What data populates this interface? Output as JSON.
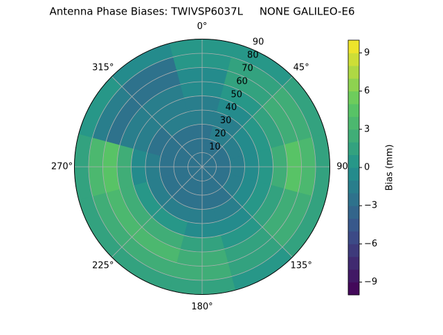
{
  "chart_data": {
    "type": "polar_contour",
    "title": "Antenna Phase Biases: TWIVSP6037L     NONE GALILEO-E6",
    "colorbar_label": "Bias (mm)",
    "colormap": "viridis",
    "theta_direction": "clockwise",
    "theta_zero": "N",
    "grid": true,
    "theta": [
      0,
      30,
      60,
      90,
      120,
      150,
      180,
      210,
      240,
      270,
      300,
      330
    ],
    "r": [
      5,
      15,
      25,
      35,
      45,
      55,
      65,
      75,
      85
    ],
    "values": [
      [
        -3,
        -3,
        -3,
        -2,
        -2,
        -1,
        -1,
        0,
        0
      ],
      [
        -3,
        -3,
        -2,
        -2,
        -1,
        0,
        1,
        1,
        0
      ],
      [
        -3,
        -3,
        -2,
        -1,
        0,
        1,
        2,
        2,
        1
      ],
      [
        -3,
        -3,
        -2,
        -1,
        0,
        2,
        4,
        3,
        1
      ],
      [
        -3,
        -3,
        -2,
        -1,
        0,
        1,
        2,
        2,
        1
      ],
      [
        -3,
        -3,
        -3,
        -2,
        -1,
        0,
        1,
        1,
        0
      ],
      [
        -3,
        -3,
        -3,
        -2,
        -1,
        1,
        2,
        2,
        1
      ],
      [
        -3,
        -3,
        -3,
        -2,
        0,
        2,
        3,
        2,
        1
      ],
      [
        -3,
        -3,
        -3,
        -2,
        0,
        2,
        3,
        2,
        1
      ],
      [
        -3,
        -3,
        -3,
        -2,
        -1,
        2,
        4,
        3,
        1
      ],
      [
        -3,
        -3,
        -3,
        -3,
        -2,
        -2,
        -3,
        -2,
        0
      ],
      [
        -3,
        -3,
        -3,
        -2,
        -2,
        -2,
        -3,
        -3,
        -1
      ]
    ],
    "rlim": [
      0,
      90
    ],
    "rticks": [
      10,
      20,
      30,
      40,
      50,
      60,
      70,
      80,
      90
    ],
    "thetaticks": [
      {
        "value": 0,
        "label": "0°"
      },
      {
        "value": 45,
        "label": "45°"
      },
      {
        "value": 90,
        "label": "90"
      },
      {
        "value": 135,
        "label": "135°"
      },
      {
        "value": 180,
        "label": "180°"
      },
      {
        "value": 225,
        "label": "225°"
      },
      {
        "value": 270,
        "label": "270°"
      },
      {
        "value": 315,
        "label": "315°"
      }
    ],
    "clim": [
      -10,
      10
    ],
    "cticks": [
      {
        "value": -9,
        "label": "−9"
      },
      {
        "value": -6,
        "label": "−6"
      },
      {
        "value": -3,
        "label": "−3"
      },
      0,
      3,
      6,
      9
    ]
  }
}
